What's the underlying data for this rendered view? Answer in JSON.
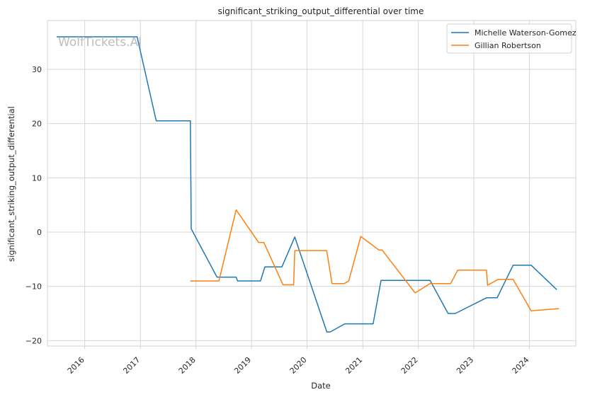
{
  "chart_data": {
    "type": "line",
    "title": "significant_striking_output_differential over time",
    "xlabel": "Date",
    "ylabel": "significant_striking_output_differential",
    "watermark": "WolfTickets.AI",
    "x_ticks": [
      "2016",
      "2017",
      "2018",
      "2019",
      "2020",
      "2021",
      "2022",
      "2023",
      "2024"
    ],
    "y_ticks": [
      -20,
      -10,
      0,
      10,
      20,
      30
    ],
    "xlim": [
      "2015-05-01",
      "2024-11-01"
    ],
    "ylim": [
      -21,
      39
    ],
    "grid": true,
    "legend_position": "top-right",
    "series": [
      {
        "name": "Michelle Waterson-Gomez",
        "color": "#1f77b4",
        "points": [
          [
            "2015-07-01",
            36.0
          ],
          [
            "2016-12-10",
            36.0
          ],
          [
            "2017-04-15",
            20.5
          ],
          [
            "2017-11-25",
            20.5
          ],
          [
            "2017-12-01",
            0.6
          ],
          [
            "2018-05-19",
            -8.3
          ],
          [
            "2018-09-22",
            -8.3
          ],
          [
            "2018-10-01",
            -9.0
          ],
          [
            "2019-03-01",
            -9.0
          ],
          [
            "2019-03-30",
            -6.4
          ],
          [
            "2019-07-20",
            -6.4
          ],
          [
            "2019-10-12",
            -0.9
          ],
          [
            "2020-05-10",
            -18.4
          ],
          [
            "2020-06-01",
            -18.4
          ],
          [
            "2020-09-05",
            -16.9
          ],
          [
            "2021-03-10",
            -16.9
          ],
          [
            "2021-05-01",
            -8.9
          ],
          [
            "2022-03-19",
            -8.9
          ],
          [
            "2022-07-16",
            -15.0
          ],
          [
            "2022-09-01",
            -15.0
          ],
          [
            "2023-03-25",
            -12.1
          ],
          [
            "2023-06-03",
            -12.1
          ],
          [
            "2023-09-16",
            -6.1
          ],
          [
            "2024-01-13",
            -6.1
          ],
          [
            "2024-06-29",
            -10.6
          ]
        ]
      },
      {
        "name": "Gillian Robertson",
        "color": "#ff7f0e",
        "points": [
          [
            "2017-11-25",
            -9.0
          ],
          [
            "2018-06-01",
            -9.0
          ],
          [
            "2018-09-22",
            4.1
          ],
          [
            "2019-02-17",
            -1.9
          ],
          [
            "2019-03-23",
            -1.9
          ],
          [
            "2019-07-27",
            -9.7
          ],
          [
            "2019-10-05",
            -9.7
          ],
          [
            "2019-10-12",
            -3.4
          ],
          [
            "2020-05-09",
            -3.4
          ],
          [
            "2020-06-13",
            -9.5
          ],
          [
            "2020-09-01",
            -9.5
          ],
          [
            "2020-10-01",
            -9.0
          ],
          [
            "2020-12-19",
            -0.8
          ],
          [
            "2021-04-17",
            -3.3
          ],
          [
            "2021-05-08",
            -3.3
          ],
          [
            "2021-12-11",
            -11.2
          ],
          [
            "2022-03-19",
            -9.5
          ],
          [
            "2022-08-01",
            -9.5
          ],
          [
            "2022-09-17",
            -7.0
          ],
          [
            "2023-03-25",
            -7.0
          ],
          [
            "2023-04-01",
            -9.8
          ],
          [
            "2023-06-10",
            -8.7
          ],
          [
            "2023-09-16",
            -8.7
          ],
          [
            "2024-01-13",
            -14.5
          ],
          [
            "2024-07-13",
            -14.1
          ]
        ]
      }
    ]
  }
}
